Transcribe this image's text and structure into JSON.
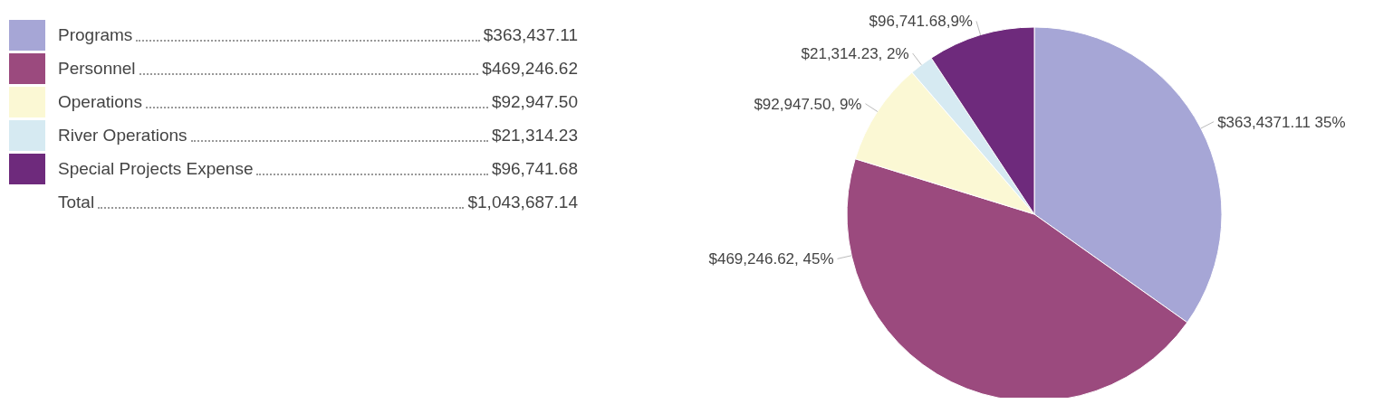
{
  "chart_data": {
    "type": "pie",
    "categories": [
      "Programs",
      "Personnel",
      "Operations",
      "River Operations",
      "Special Projects Expense"
    ],
    "values": [
      363437.11,
      469246.62,
      92947.5,
      21314.23,
      96741.68
    ],
    "colors": [
      "#a6a6d6",
      "#9b4a7e",
      "#fbf8d4",
      "#d6eaf2",
      "#6e2a7c"
    ],
    "value_labels": [
      "$363,4371.11 35%",
      "$469,246.62, 45%",
      "$92,947.50, 9%",
      "$21,314.23, 2%",
      "$96,741.68,9%"
    ],
    "legend": "left",
    "annotations": [
      "$363,437.11",
      "$469,246.62",
      "$92,947.50",
      "$21,314.23",
      "$96,741.68",
      "Total",
      "$1,043,687.14"
    ]
  }
}
